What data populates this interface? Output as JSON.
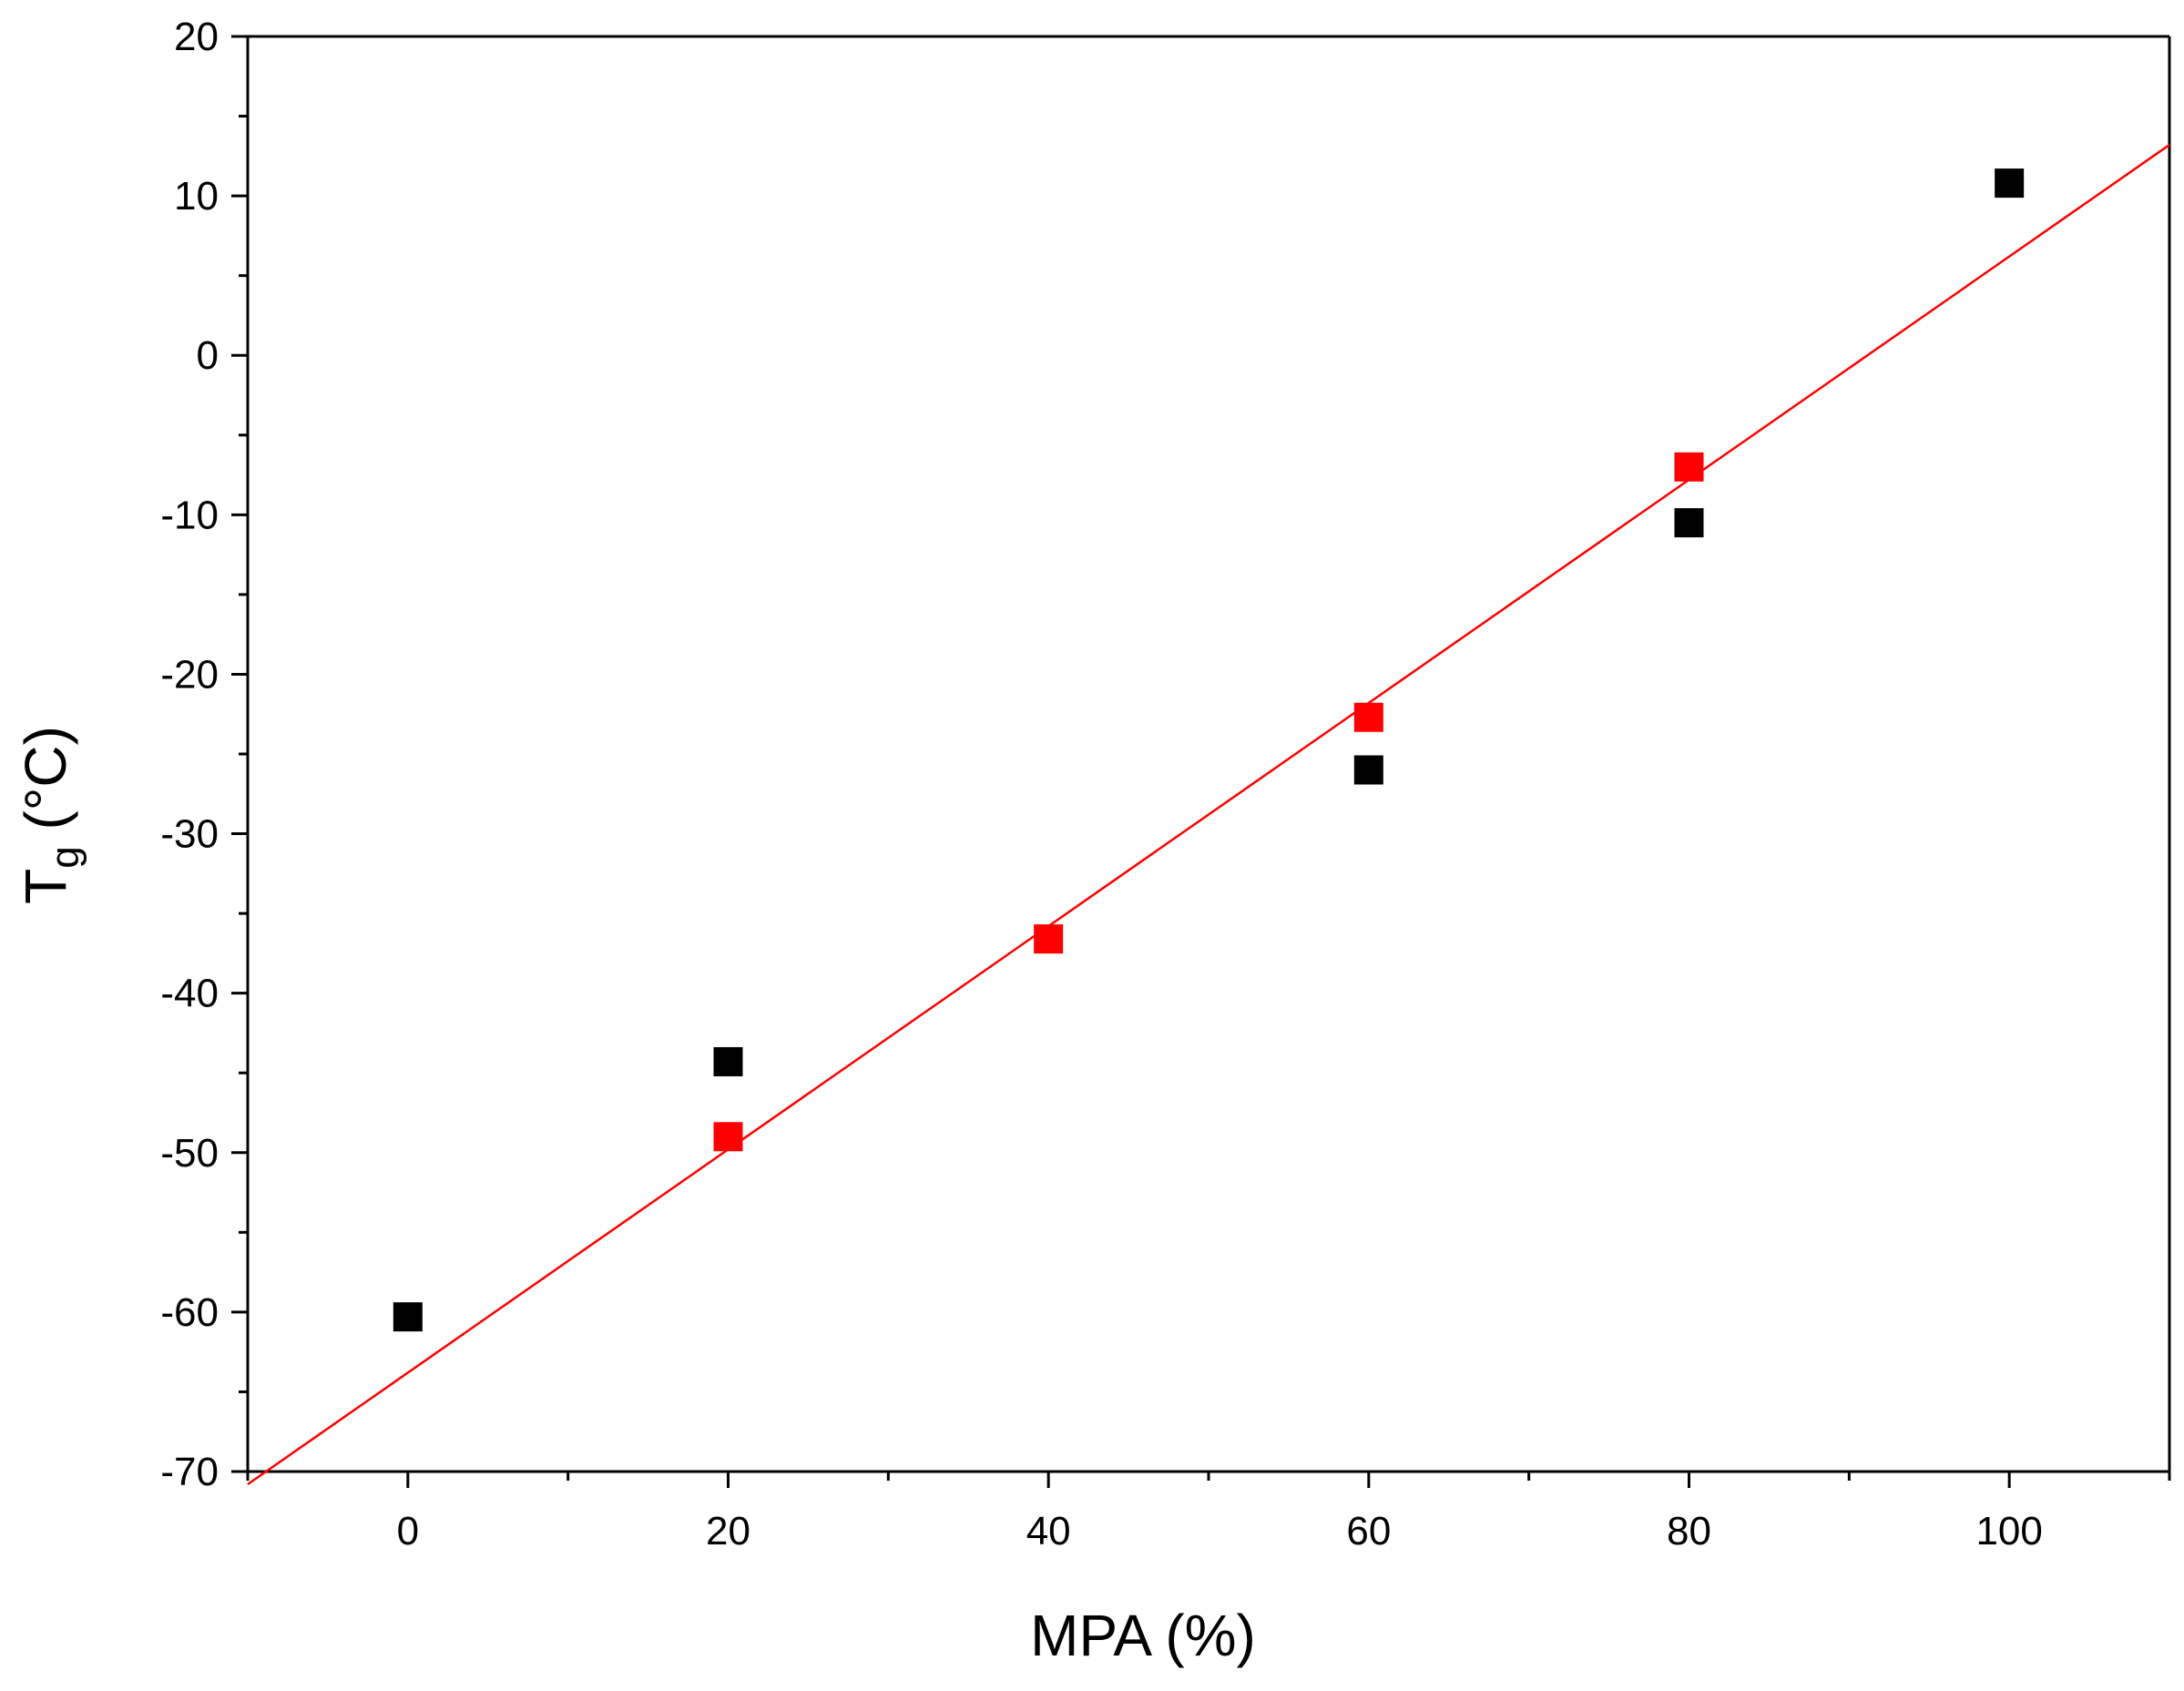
{
  "chart_data": {
    "type": "scatter",
    "xlabel": "MPA (%)",
    "ylabel": {
      "main": "T",
      "sub": "g",
      "unit": " (°C)"
    },
    "xlim": [
      -10,
      110
    ],
    "ylim": [
      -70,
      20
    ],
    "x_ticks": [
      0,
      20,
      40,
      60,
      80,
      100
    ],
    "x_tick_labels": [
      "0",
      "20",
      "40",
      "60",
      "80",
      "100"
    ],
    "y_ticks": [
      20,
      10,
      0,
      -10,
      -20,
      -30,
      -40,
      -50,
      -60,
      -70
    ],
    "y_tick_labels": [
      "20",
      "10",
      "0",
      "-10",
      "-20",
      "-30",
      "-40",
      "-50",
      "-60",
      "-70"
    ],
    "x_minor_step": 10,
    "y_minor_step": 5,
    "grid": false,
    "series": [
      {
        "color": "#000000",
        "marker": "square",
        "x": [
          0,
          20,
          60,
          80,
          100
        ],
        "y": [
          -60.3,
          -44.3,
          -26.0,
          -10.5,
          10.8
        ]
      },
      {
        "color": "#ff0000",
        "marker": "square",
        "x": [
          20,
          40,
          60,
          80
        ],
        "y": [
          -49.0,
          -36.6,
          -22.7,
          -7.0
        ]
      }
    ],
    "fit_line": {
      "color": "#ff0000",
      "x": [
        -10,
        110
      ],
      "y": [
        -70.8,
        13.2
      ]
    }
  }
}
